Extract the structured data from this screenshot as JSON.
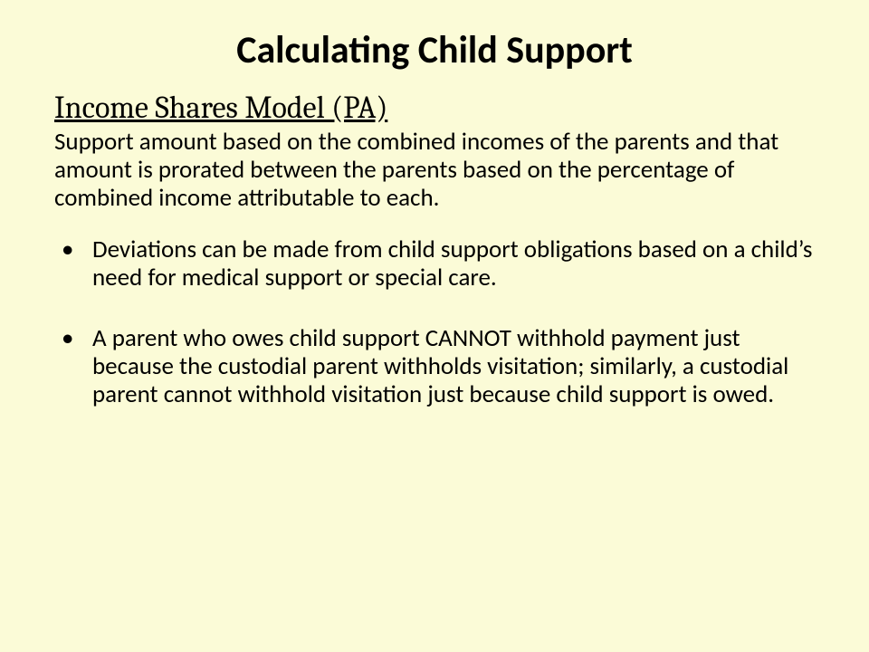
{
  "slide": {
    "background_color": "#fbfbd7",
    "text_color": "#000000",
    "title": "Calculating Child Support",
    "title_fontsize": 42,
    "title_weight": 700,
    "subtitle": "Income Shares Model (PA)",
    "subtitle_fontsize": 34,
    "subtitle_underline": true,
    "lead": "Support amount based on the combined incomes of the parents and that amount is prorated between the parents based on the percentage of combined income attributable to each.",
    "body_fontsize": 27,
    "bullets": [
      "Deviations can be made from child support obligations based on a child’s need for medical support or special care.",
      "A parent who owes child support CANNOT withhold payment just because the custodial parent withholds visitation; similarly, a custodial parent cannot withhold visitation just because child support is owed."
    ],
    "bullet_marker": "•"
  }
}
